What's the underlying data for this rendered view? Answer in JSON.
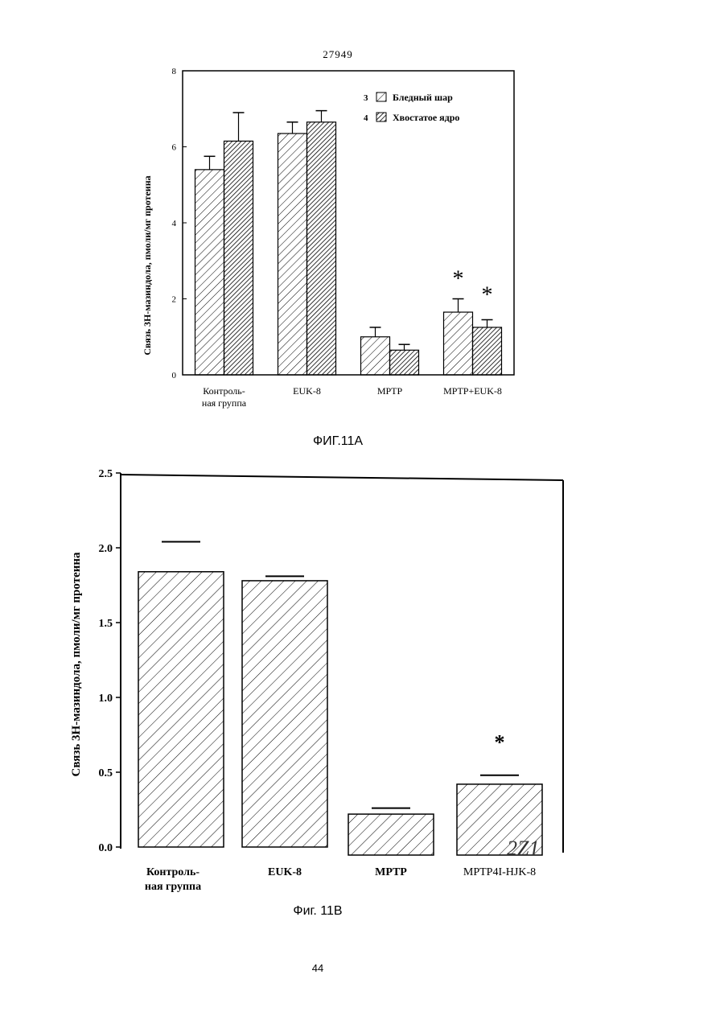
{
  "document": {
    "doc_number": "27949",
    "caption_a": "ФИГ.11А",
    "caption_b": "Фиг. 11В",
    "page_number": "44",
    "stamp": "2Z1"
  },
  "chart_data": [
    {
      "type": "bar",
      "ylabel": "Связь 3Н-мазиндола, пмоли/мг протеина",
      "ylim": [
        0,
        8
      ],
      "yticks": [
        "0",
        "2",
        "4",
        "6",
        "8"
      ],
      "categories": [
        "Контроль-\nная группа",
        "EUK-8",
        "MPTP",
        "MPTP+EUK-8"
      ],
      "category_lines": [
        [
          "Контроль-",
          "ная группа"
        ],
        [
          "EUK-8"
        ],
        [
          "MPTP"
        ],
        [
          "MPTP+EUK-8"
        ]
      ],
      "series": [
        {
          "name": "Бледный шар",
          "legend_number": "3",
          "values": [
            5.4,
            6.35,
            1.0,
            1.65
          ],
          "errors": [
            0.35,
            0.3,
            0.25,
            0.35
          ],
          "pattern": "light"
        },
        {
          "name": "Хвостатое ядро",
          "legend_number": "4",
          "values": [
            6.15,
            6.65,
            0.65,
            1.25
          ],
          "errors": [
            0.75,
            0.3,
            0.15,
            0.2
          ],
          "pattern": "dense"
        }
      ],
      "annotations": [
        "*",
        "*"
      ],
      "legend_position": "top-right"
    },
    {
      "type": "bar",
      "ylabel": "Связь 3Н-мазиндола, пмоли/мг протеина",
      "ylim": [
        0,
        2.5
      ],
      "yticks": [
        "0.0",
        "0.5",
        "1.0",
        "1.5",
        "2.0",
        "2.5"
      ],
      "categories": [
        "Контроль-\nная группа",
        "EUK-8",
        "MPTP",
        "MPTP4I-HJK-8"
      ],
      "category_lines": [
        [
          "Контроль-",
          "ная группа"
        ],
        [
          "EUK-8"
        ],
        [
          "MPTP"
        ],
        [
          "MPTP4I-HJK-8"
        ]
      ],
      "values": [
        1.84,
        1.78,
        0.22,
        0.42
      ],
      "errors": [
        0.2,
        0.03,
        0.04,
        0.06
      ],
      "annotations": [
        "*"
      ]
    }
  ]
}
